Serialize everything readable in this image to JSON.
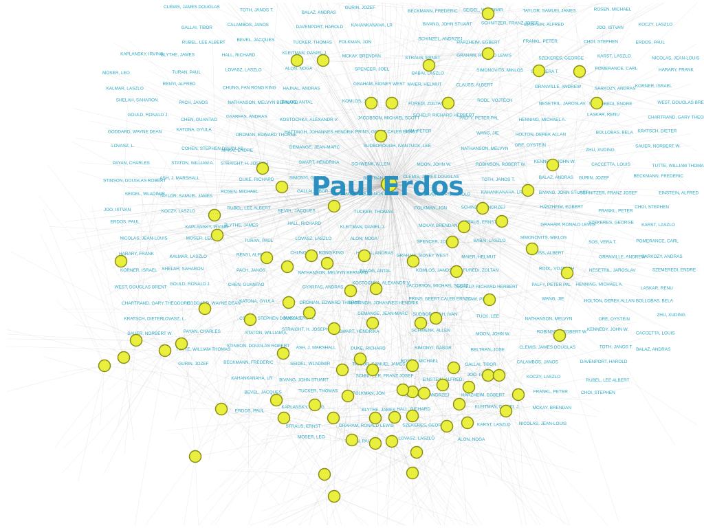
{
  "title": "Paul Erdos",
  "colors": {
    "node_fill": "#e8ef3c",
    "node_stroke": "#8c8c14",
    "label": "#2aa7c2",
    "title": "#2b8fc0",
    "edge": "#9a9a9a"
  },
  "labels": [
    "CLEMIS, JAMES DOUGLAS",
    "TOTH, JANOS T.",
    "BALAZ, ANDRAS",
    "GURIN, JOZEF",
    "BECKMANN, FREDERIC",
    "SEIDEL, WLADIMIR",
    "TAYLOR, SAMUEL JAMES",
    "ROSEN, MICHAEL",
    "GALLAI, TIBOR",
    "CALAMBOS, JANOS",
    "DAVENPORT, HAROLD",
    "KAHANKANAHA, LR",
    "BIVANG, JOHN STUART",
    "SCHNITZER, FRANZ JOSEF",
    "EINSTEIN, ALFRED",
    "JOO, ISTVAN",
    "KOCZY, LASZLO",
    "RUBEL, LEE ALBERT",
    "BEVEL, JACQUES",
    "TUCKER, THOMAS",
    "FOLKMAN, JON",
    "SCHINZEL, ANDRZEJ",
    "HARZHEIM, EGBERT",
    "FRANKL, PETER",
    "CHOI, STEPHEN",
    "ERDOS, PAUL",
    "KAPLANSKY, IRVING",
    "BLYTHE, JAMES",
    "HALL, RICHARD",
    "KLEITMAN, DANIEL J.",
    "MCKAY, BRENDAN",
    "STRAUS, ERNST",
    "GRAHAM, RONALD LEWIS",
    "SZEKERES, GEORGE",
    "KARST, LASZLO",
    "NICOLAS, JEAN-LOUIS",
    "MOSER, LEO",
    "TURAN, PAUL",
    "LOVASZ, LASZLO",
    "ALON, NOGA",
    "SPENCER, JOEL",
    "BABAI, LASZLO",
    "SIMONOVITS, MIKLOS",
    "SOS, VERA T.",
    "POMERANCE, CARL",
    "HARARY, FRANK",
    "KALMAR, LASZLO",
    "RENYI, ALFRED",
    "CHUNG, FAN RONG KING",
    "HAJNAL, ANDRAS",
    "GRAHAM, SIDNEY WEST",
    "MAIER, HELMUT",
    "CLAUSS, ALBERT",
    "GRANVILLE, ANDREW",
    "SARKOZY, ANDRAS",
    "KORNER, ISRAEL",
    "SHELAH, SAHARON",
    "PACH, JANOS",
    "NATHANSON, MELVYN BERNARD",
    "BALOG, ANTAL",
    "KOMLOS, JANOS",
    "FUREDI, ZOLTAN",
    "RODL, VOJTECH",
    "NESETRIL, JAROSLAV",
    "SZEMEREDI, ENDRE",
    "WEST, DOUGLAS BRENT",
    "GOULD, RONALD J.",
    "CHEN, GUANTAO",
    "GYARFAS, ANDRAS",
    "KOSTOCHKA, ALEXANDR V.",
    "JACOBSON, MICHAEL SCOTT",
    "SCHELP, RICHARD HERBERT",
    "PALFY, PETER PAL",
    "HENNING, MICHAEL A.",
    "LASKAR, RENU",
    "CHARTRAND, GARY THEODORE",
    "GODDARD, WAYNE DEAN",
    "KATONA, GYULA",
    "ORDMAN, EDWARD THORNE",
    "HATTINGH, JOHANNES HENDRIK",
    "PRINS, GEERT CALEB ERNST",
    "LAM, PETER",
    "WANG, JIE",
    "HOLTON, DEREK ALLAN",
    "BOLLOBAS, BELA",
    "KRATSCH, DIETER",
    "LOVASZ, L.",
    "COHEN, STEPHEN DOUGLAS",
    "MAKAI, ENDRE",
    "DEMANGE, JEAN-MARC",
    "SUDBOROUGH, IVAN",
    "TUCK, LEE",
    "NATHANSON, MELVYN",
    "ORE, OYSTEIN",
    "ZHU, XUDING",
    "SAUER, NORBERT W.",
    "PAYAN, CHARLES",
    "STATON, WILLIAM A.",
    "STRAIGHT, H. JOSEPH",
    "SWART, HENDRIKA",
    "SCHWENK, ALLEN",
    "MOON, JOHN W.",
    "ROBINSON, ROBERT W.",
    "KENNEDY, JOHN W.",
    "CACCETTA, LOUIS",
    "TUTTE, WILLIAM THOMAS",
    "STINSON, DOUGLAS ROBERT",
    "ASH, J. MARSHALL",
    "DUKE, RICHARD",
    "SIMONYI, GABOR",
    "BELTRAN, JOSE"
  ]
}
